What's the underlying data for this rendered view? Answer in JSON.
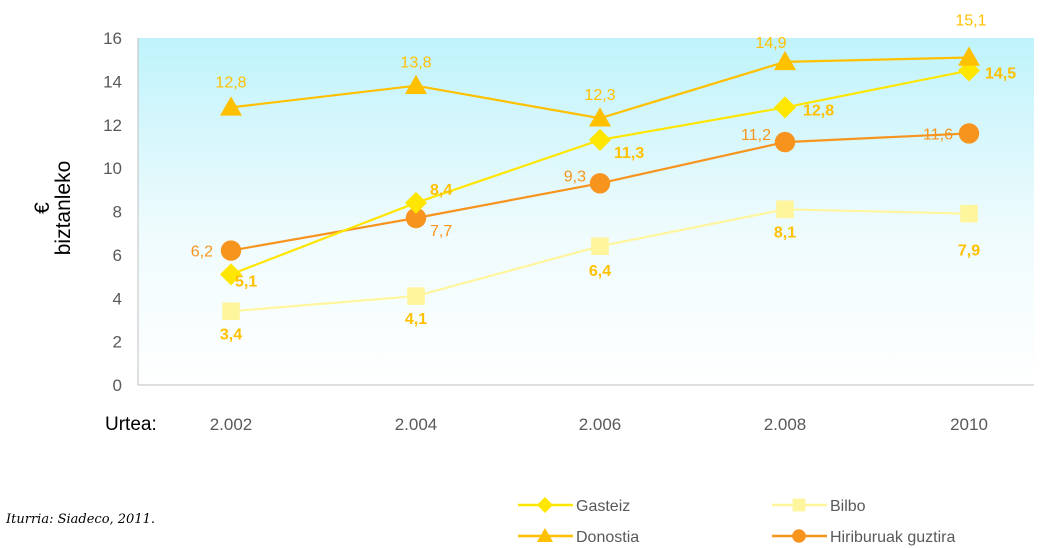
{
  "chart_data": {
    "type": "line",
    "categories": [
      "2.002",
      "2.004",
      "2.006",
      "2.008",
      "2010"
    ],
    "x_prefix": "Urtea:",
    "ylabel": [
      "€",
      "biztanleko"
    ],
    "ylim": [
      0,
      16
    ],
    "yticks": [
      "0",
      "2",
      "4",
      "6",
      "8",
      "10",
      "12",
      "14",
      "16"
    ],
    "grid": false,
    "legend_position": "bottom-right",
    "series": [
      {
        "name": "Gasteiz",
        "values": [
          5.1,
          8.4,
          11.3,
          12.8,
          14.5
        ],
        "labels": [
          "5,1",
          "8,4",
          "11,3",
          "12,8",
          "14,5"
        ],
        "color": "#FFE600",
        "marker": "diamond"
      },
      {
        "name": "Bilbo",
        "values": [
          3.4,
          4.1,
          6.4,
          8.1,
          7.9
        ],
        "labels": [
          "3,4",
          "4,1",
          "6,4",
          "8,1",
          "7,9"
        ],
        "color": "#FFF59D",
        "marker": "square"
      },
      {
        "name": "Donostia",
        "values": [
          12.8,
          13.8,
          12.3,
          14.9,
          15.1
        ],
        "labels": [
          "12,8",
          "13,8",
          "12,3",
          "14,9",
          "15,1"
        ],
        "color": "#FFC000",
        "marker": "triangle"
      },
      {
        "name": "Hiriburuak guztira",
        "values": [
          6.2,
          7.7,
          9.3,
          11.2,
          11.6
        ],
        "labels": [
          "6,2",
          "7,7",
          "9,3",
          "11,2",
          "11,6"
        ],
        "color": "#F7941D",
        "marker": "circle"
      }
    ]
  },
  "source": "Iturria: Siadeco, 2011."
}
